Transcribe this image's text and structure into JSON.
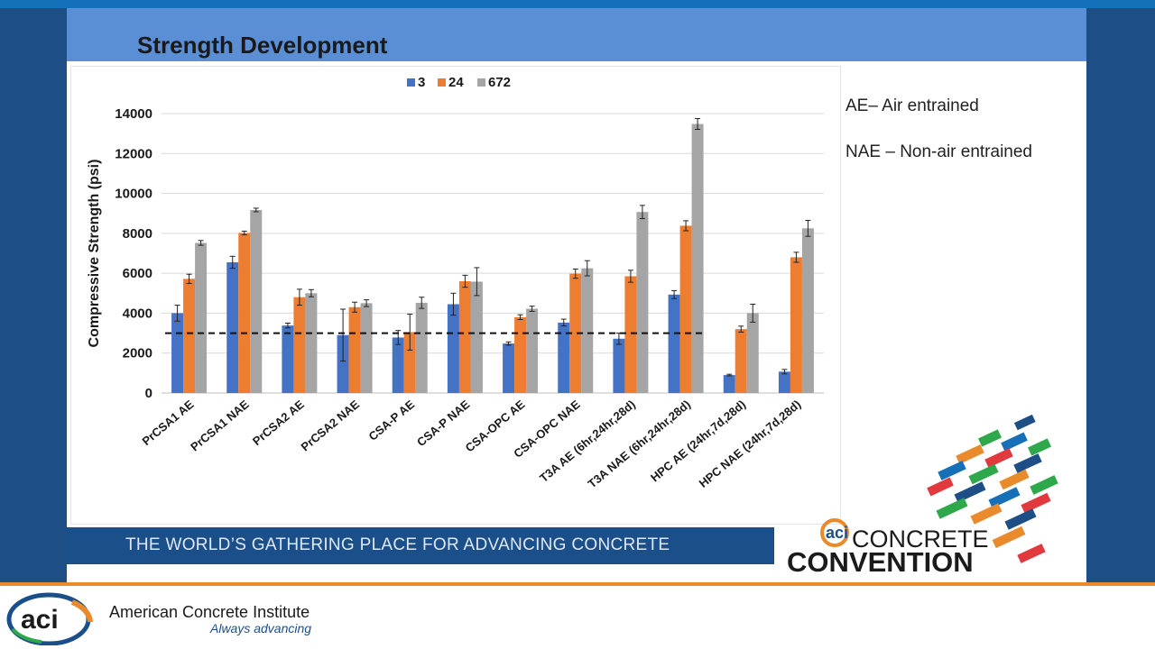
{
  "slide": {
    "title": "Strength Development",
    "notes": [
      "AE– Air entrained",
      "NAE – Non-air entrained"
    ],
    "tagline": "THE WORLD’S GATHERING PLACE FOR ADVANCING CONCRETE"
  },
  "convention_logo": {
    "word1": "CONCRETE",
    "word2": "CONVENTION",
    "mark": "aci"
  },
  "footer": {
    "org_name": "American Concrete Institute",
    "org_tagline": "Always advancing",
    "logo_text": "aci"
  },
  "colors": {
    "band": "#5a8fd6",
    "sidebar": "#1d4e86",
    "tagline_bar": "#1b4f8a",
    "footer_line": "#e98a2c"
  },
  "chart_data": {
    "type": "bar",
    "title": "",
    "xlabel": "",
    "ylabel": "Compressive Strength (psi)",
    "ylim": [
      0,
      14000
    ],
    "yticks": [
      0,
      2000,
      4000,
      6000,
      8000,
      10000,
      12000,
      14000
    ],
    "grid": true,
    "legend_position": "top",
    "reference_line": {
      "y": 3000,
      "style": "dashed"
    },
    "categories": [
      "PrCSA1 AE",
      "PrCSA1 NAE",
      "PrCSA2 AE",
      "PrCSA2 NAE",
      "CSA-P AE",
      "CSA-P NAE",
      "CSA-OPC AE",
      "CSA-OPC NAE",
      "T3A AE (6hr,24hr,28d)",
      "T3A NAE (6hr,24hr,28d)",
      "HPC AE (24hr,7d,28d)",
      "HPC NAE (24hr,7d,28d)"
    ],
    "series": [
      {
        "name": "3",
        "color": "#4472c4",
        "values": [
          4000,
          6550,
          3380,
          2900,
          2780,
          4450,
          2480,
          3530,
          2720,
          4930,
          900,
          1070
        ],
        "errors": [
          400,
          300,
          120,
          1300,
          350,
          550,
          80,
          170,
          280,
          200,
          40,
          110
        ]
      },
      {
        "name": "24",
        "color": "#ed7d31",
        "values": [
          5720,
          8020,
          4800,
          4300,
          3050,
          5600,
          3800,
          5980,
          5850,
          8380,
          3200,
          6800
        ],
        "errors": [
          230,
          90,
          400,
          250,
          900,
          300,
          120,
          230,
          300,
          250,
          150,
          250
        ]
      },
      {
        "name": "672",
        "color": "#a5a5a5",
        "values": [
          7520,
          9170,
          5000,
          4500,
          4520,
          5580,
          4220,
          6250,
          9070,
          13480,
          4000,
          8250
        ],
        "errors": [
          120,
          90,
          180,
          170,
          280,
          700,
          130,
          380,
          330,
          270,
          450,
          400
        ]
      }
    ]
  }
}
